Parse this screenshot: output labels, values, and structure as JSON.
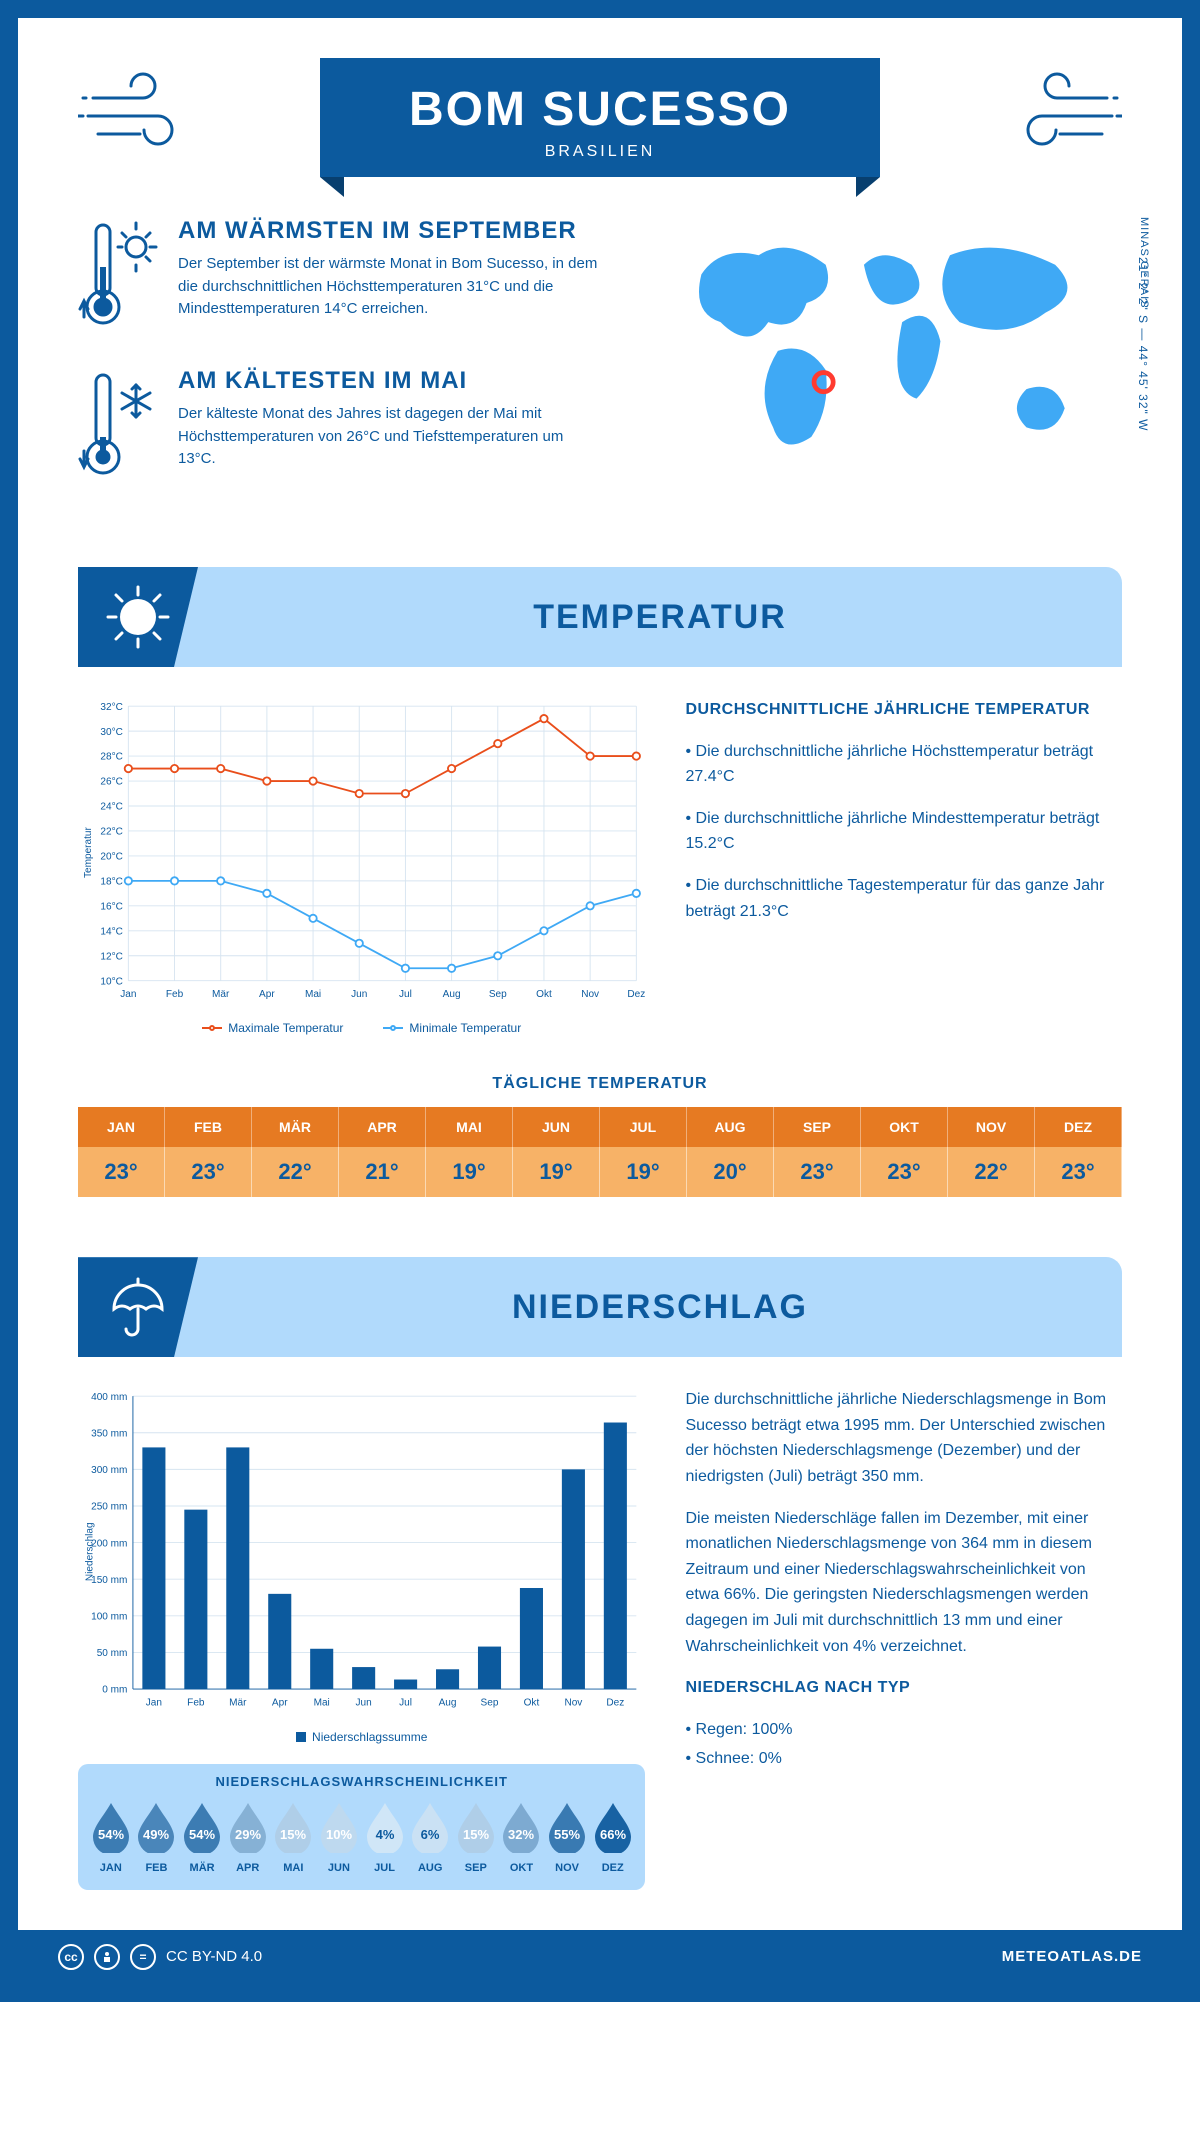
{
  "colors": {
    "frame": "#0c5a9e",
    "light_blue": "#b1dafc",
    "text": "#0c5a9e",
    "orange_dark": "#e67a22",
    "orange_light": "#f7b267",
    "max_line": "#e94e1b",
    "min_line": "#3fa9f5",
    "grid": "#d6e4f0",
    "marker_red": "#ff3b30",
    "white": "#ffffff"
  },
  "header": {
    "title": "BOM SUCESSO",
    "subtitle": "BRASILIEN"
  },
  "overview": {
    "warm_title": "AM WÄRMSTEN IM SEPTEMBER",
    "warm_text": "Der September ist der wärmste Monat in Bom Sucesso, in dem die durchschnittlichen Höchsttemperaturen 31°C und die Mindesttemperaturen 14°C erreichen.",
    "cold_title": "AM KÄLTESTEN IM MAI",
    "cold_text": "Der kälteste Monat des Jahres ist dagegen der Mai mit Höchsttemperaturen von 26°C und Tiefsttemperaturen um 13°C.",
    "region": "MINAS GERAIS",
    "coords": "21° 2' 2\" S — 44° 45' 32\" W",
    "marker": {
      "lat": -21.03,
      "lon": -44.76
    }
  },
  "sections": {
    "temp_title": "TEMPERATUR",
    "precip_title": "NIEDERSCHLAG"
  },
  "months": [
    "Jan",
    "Feb",
    "Mär",
    "Apr",
    "Mai",
    "Jun",
    "Jul",
    "Aug",
    "Sep",
    "Okt",
    "Nov",
    "Dez"
  ],
  "months_upper": [
    "JAN",
    "FEB",
    "MÄR",
    "APR",
    "MAI",
    "JUN",
    "JUL",
    "AUG",
    "SEP",
    "OKT",
    "NOV",
    "DEZ"
  ],
  "temp_chart": {
    "y_label": "Temperatur",
    "y_min": 10,
    "y_max": 32,
    "y_step": 2,
    "y_unit": "°C",
    "max_series": [
      27,
      27,
      27,
      26,
      26,
      25,
      25,
      27,
      29,
      31,
      28,
      28,
      27
    ],
    "min_series": [
      18,
      18,
      18,
      17,
      15,
      13,
      11,
      11,
      12,
      14,
      16,
      17,
      18
    ],
    "legend_max": "Maximale Temperatur",
    "legend_min": "Minimale Temperatur"
  },
  "temp_sidebar": {
    "title": "DURCHSCHNITTLICHE JÄHRLICHE TEMPERATUR",
    "p1": "• Die durchschnittliche jährliche Höchsttemperatur beträgt 27.4°C",
    "p2": "• Die durchschnittliche jährliche Mindesttemperatur beträgt 15.2°C",
    "p3": "• Die durchschnittliche Tagestemperatur für das ganze Jahr beträgt 21.3°C"
  },
  "daily_temp": {
    "title": "TÄGLICHE TEMPERATUR",
    "values": [
      "23°",
      "23°",
      "22°",
      "21°",
      "19°",
      "19°",
      "19°",
      "20°",
      "23°",
      "23°",
      "22°",
      "23°"
    ]
  },
  "precip_chart": {
    "y_label": "Niederschlag",
    "y_min": 0,
    "y_max": 400,
    "y_step": 50,
    "y_unit": " mm",
    "values": [
      330,
      245,
      330,
      130,
      55,
      30,
      13,
      27,
      58,
      138,
      300,
      364
    ],
    "legend": "Niederschlagssumme",
    "bar_color": "#0c5a9e"
  },
  "precip_sidebar": {
    "p1": "Die durchschnittliche jährliche Niederschlagsmenge in Bom Sucesso beträgt etwa 1995 mm. Der Unterschied zwischen der höchsten Niederschlagsmenge (Dezember) und der niedrigsten (Juli) beträgt 350 mm.",
    "p2": "Die meisten Niederschläge fallen im Dezember, mit einer monatlichen Niederschlagsmenge von 364 mm in diesem Zeitraum und einer Niederschlagswahrscheinlichkeit von etwa 66%. Die geringsten Niederschlagsmengen werden dagegen im Juli mit durchschnittlich 13 mm und einer Wahrscheinlichkeit von 4% verzeichnet.",
    "type_title": "NIEDERSCHLAG NACH TYP",
    "type_1": "• Regen: 100%",
    "type_2": "• Schnee: 0%"
  },
  "prob": {
    "title": "NIEDERSCHLAGSWAHRSCHEINLICHKEIT",
    "values": [
      "54%",
      "49%",
      "54%",
      "29%",
      "15%",
      "10%",
      "4%",
      "6%",
      "15%",
      "32%",
      "55%",
      "66%"
    ],
    "pct": [
      54,
      49,
      54,
      29,
      15,
      10,
      4,
      6,
      15,
      32,
      55,
      66
    ]
  },
  "footer": {
    "license": "CC BY-ND 4.0",
    "brand": "METEOATLAS.DE"
  }
}
